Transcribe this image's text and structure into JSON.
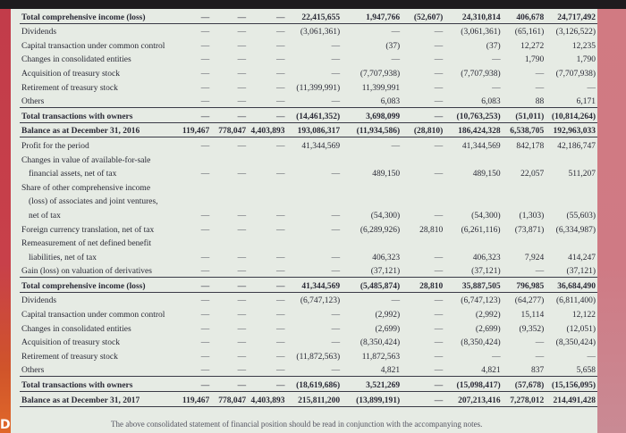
{
  "rows": [
    {
      "label": "Total comprehensive income (loss)",
      "style": "bold rule-bottom",
      "cells": [
        "—",
        "—",
        "—",
        "22,415,655",
        "1,947,766",
        "(52,607)",
        "24,310,814",
        "406,678",
        "24,717,492"
      ]
    },
    {
      "label": "Dividends",
      "style": "",
      "cells": [
        "—",
        "—",
        "—",
        "(3,061,361)",
        "—",
        "—",
        "(3,061,361)",
        "(65,161)",
        "(3,126,522)"
      ]
    },
    {
      "label": "Capital transaction under common control",
      "style": "",
      "cells": [
        "—",
        "—",
        "—",
        "—",
        "(37)",
        "—",
        "(37)",
        "12,272",
        "12,235"
      ]
    },
    {
      "label": "Changes in consolidated entities",
      "style": "",
      "cells": [
        "—",
        "—",
        "—",
        "—",
        "—",
        "—",
        "—",
        "1,790",
        "1,790"
      ]
    },
    {
      "label": "Acquisition of treasury stock",
      "style": "",
      "cells": [
        "—",
        "—",
        "—",
        "—",
        "(7,707,938)",
        "—",
        "(7,707,938)",
        "—",
        "(7,707,938)"
      ]
    },
    {
      "label": "Retirement of treasury stock",
      "style": "",
      "cells": [
        "—",
        "—",
        "—",
        "(11,399,991)",
        "11,399,991",
        "—",
        "—",
        "—",
        "—"
      ]
    },
    {
      "label": "Others",
      "style": "rule-bottom",
      "cells": [
        "—",
        "—",
        "—",
        "—",
        "6,083",
        "—",
        "6,083",
        "88",
        "6,171"
      ]
    },
    {
      "label": "Total transactions with owners",
      "style": "bold rule-bottom",
      "cells": [
        "—",
        "—",
        "—",
        "(14,461,352)",
        "3,698,099",
        "—",
        "(10,763,253)",
        "(51,011)",
        "(10,814,264)"
      ]
    },
    {
      "label": "Balance as at December 31, 2016",
      "style": "bold rule-bottom",
      "cells": [
        "119,467",
        "778,047",
        "4,403,893",
        "193,086,317",
        "(11,934,586)",
        "(28,810)",
        "186,424,328",
        "6,538,705",
        "192,963,033"
      ]
    },
    {
      "label": "Profit for the period",
      "style": "",
      "cells": [
        "—",
        "—",
        "—",
        "41,344,569",
        "—",
        "—",
        "41,344,569",
        "842,178",
        "42,186,747"
      ]
    },
    {
      "label": "Changes in value of available-for-sale",
      "style": "",
      "cells": [
        "",
        "",
        "",
        "",
        "",
        "",
        "",
        "",
        ""
      ]
    },
    {
      "label": "financial assets, net of tax",
      "style": "indent",
      "cells": [
        "—",
        "—",
        "—",
        "—",
        "489,150",
        "—",
        "489,150",
        "22,057",
        "511,207"
      ]
    },
    {
      "label": "Share of other comprehensive income",
      "style": "",
      "cells": [
        "",
        "",
        "",
        "",
        "",
        "",
        "",
        "",
        ""
      ]
    },
    {
      "label": "(loss) of associates and joint ventures,",
      "style": "indent",
      "cells": [
        "",
        "",
        "",
        "",
        "",
        "",
        "",
        "",
        ""
      ]
    },
    {
      "label": "net of tax",
      "style": "indent",
      "cells": [
        "—",
        "—",
        "—",
        "—",
        "(54,300)",
        "—",
        "(54,300)",
        "(1,303)",
        "(55,603)"
      ]
    },
    {
      "label": "Foreign currency translation, net of tax",
      "style": "",
      "cells": [
        "—",
        "—",
        "—",
        "—",
        "(6,289,926)",
        "28,810",
        "(6,261,116)",
        "(73,871)",
        "(6,334,987)"
      ]
    },
    {
      "label": "Remeasurement of net defined benefit",
      "style": "",
      "cells": [
        "",
        "",
        "",
        "",
        "",
        "",
        "",
        "",
        ""
      ]
    },
    {
      "label": "liabilities, net of tax",
      "style": "indent",
      "cells": [
        "—",
        "—",
        "—",
        "—",
        "406,323",
        "—",
        "406,323",
        "7,924",
        "414,247"
      ]
    },
    {
      "label": "Gain (loss) on valuation of derivatives",
      "style": "rule-bottom",
      "cells": [
        "—",
        "—",
        "—",
        "—",
        "(37,121)",
        "—",
        "(37,121)",
        "—",
        "(37,121)"
      ]
    },
    {
      "label": "Total comprehensive income (loss)",
      "style": "bold rule-bottom",
      "cells": [
        "—",
        "—",
        "—",
        "41,344,569",
        "(5,485,874)",
        "28,810",
        "35,887,505",
        "796,985",
        "36,684,490"
      ]
    },
    {
      "label": "Dividends",
      "style": "",
      "cells": [
        "—",
        "—",
        "—",
        "(6,747,123)",
        "—",
        "—",
        "(6,747,123)",
        "(64,277)",
        "(6,811,400)"
      ]
    },
    {
      "label": "Capital transaction under common control",
      "style": "",
      "cells": [
        "—",
        "—",
        "—",
        "—",
        "(2,992)",
        "—",
        "(2,992)",
        "15,114",
        "12,122"
      ]
    },
    {
      "label": "Changes in consolidated entities",
      "style": "",
      "cells": [
        "—",
        "—",
        "—",
        "—",
        "(2,699)",
        "—",
        "(2,699)",
        "(9,352)",
        "(12,051)"
      ]
    },
    {
      "label": "Acquisition of treasury stock",
      "style": "",
      "cells": [
        "—",
        "—",
        "—",
        "—",
        "(8,350,424)",
        "—",
        "(8,350,424)",
        "—",
        "(8,350,424)"
      ]
    },
    {
      "label": "Retirement of treasury stock",
      "style": "",
      "cells": [
        "—",
        "—",
        "—",
        "(11,872,563)",
        "11,872,563",
        "—",
        "—",
        "—",
        "—"
      ]
    },
    {
      "label": "Others",
      "style": "rule-bottom",
      "cells": [
        "—",
        "—",
        "—",
        "—",
        "4,821",
        "—",
        "4,821",
        "837",
        "5,658"
      ]
    },
    {
      "label": "Total transactions with owners",
      "style": "bold rule-bottom",
      "cells": [
        "—",
        "—",
        "—",
        "(18,619,686)",
        "3,521,269",
        "—",
        "(15,098,417)",
        "(57,678)",
        "(15,156,095)"
      ]
    },
    {
      "label": "Balance as at December 31, 2017",
      "style": "bold rule-bottom",
      "cells": [
        "119,467",
        "778,047",
        "4,403,893",
        "215,811,200",
        "(13,899,191)",
        "—",
        "207,213,416",
        "7,278,012",
        "214,491,428"
      ]
    }
  ],
  "footer_note": "The above consolidated statement of financial position should be read in conjunction with the accompanying notes."
}
